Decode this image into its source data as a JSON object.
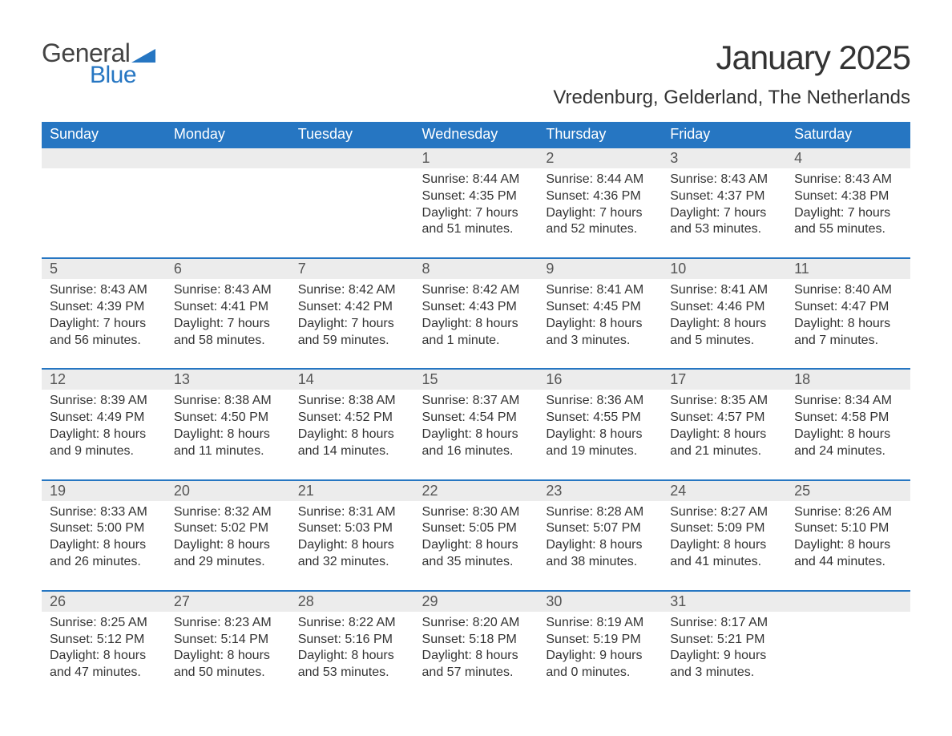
{
  "logo": {
    "text1": "General",
    "text2": "Blue",
    "triangle_color": "#2676c2",
    "text1_color": "#444444",
    "text2_color": "#2676c2"
  },
  "title": "January 2025",
  "location": "Vredenburg, Gelderland, The Netherlands",
  "colors": {
    "header_bg": "#2676c2",
    "header_fg": "#ffffff",
    "daynum_bg": "#ececec",
    "rule": "#2676c2",
    "body_fg": "#333333"
  },
  "day_headers": [
    "Sunday",
    "Monday",
    "Tuesday",
    "Wednesday",
    "Thursday",
    "Friday",
    "Saturday"
  ],
  "weeks": [
    {
      "nums": [
        "",
        "",
        "",
        "1",
        "2",
        "3",
        "4"
      ],
      "details": [
        {
          "l1": "",
          "l2": "",
          "l3": "",
          "l4": ""
        },
        {
          "l1": "",
          "l2": "",
          "l3": "",
          "l4": ""
        },
        {
          "l1": "",
          "l2": "",
          "l3": "",
          "l4": ""
        },
        {
          "l1": "Sunrise: 8:44 AM",
          "l2": "Sunset: 4:35 PM",
          "l3": "Daylight: 7 hours",
          "l4": "and 51 minutes."
        },
        {
          "l1": "Sunrise: 8:44 AM",
          "l2": "Sunset: 4:36 PM",
          "l3": "Daylight: 7 hours",
          "l4": "and 52 minutes."
        },
        {
          "l1": "Sunrise: 8:43 AM",
          "l2": "Sunset: 4:37 PM",
          "l3": "Daylight: 7 hours",
          "l4": "and 53 minutes."
        },
        {
          "l1": "Sunrise: 8:43 AM",
          "l2": "Sunset: 4:38 PM",
          "l3": "Daylight: 7 hours",
          "l4": "and 55 minutes."
        }
      ]
    },
    {
      "nums": [
        "5",
        "6",
        "7",
        "8",
        "9",
        "10",
        "11"
      ],
      "details": [
        {
          "l1": "Sunrise: 8:43 AM",
          "l2": "Sunset: 4:39 PM",
          "l3": "Daylight: 7 hours",
          "l4": "and 56 minutes."
        },
        {
          "l1": "Sunrise: 8:43 AM",
          "l2": "Sunset: 4:41 PM",
          "l3": "Daylight: 7 hours",
          "l4": "and 58 minutes."
        },
        {
          "l1": "Sunrise: 8:42 AM",
          "l2": "Sunset: 4:42 PM",
          "l3": "Daylight: 7 hours",
          "l4": "and 59 minutes."
        },
        {
          "l1": "Sunrise: 8:42 AM",
          "l2": "Sunset: 4:43 PM",
          "l3": "Daylight: 8 hours",
          "l4": "and 1 minute."
        },
        {
          "l1": "Sunrise: 8:41 AM",
          "l2": "Sunset: 4:45 PM",
          "l3": "Daylight: 8 hours",
          "l4": "and 3 minutes."
        },
        {
          "l1": "Sunrise: 8:41 AM",
          "l2": "Sunset: 4:46 PM",
          "l3": "Daylight: 8 hours",
          "l4": "and 5 minutes."
        },
        {
          "l1": "Sunrise: 8:40 AM",
          "l2": "Sunset: 4:47 PM",
          "l3": "Daylight: 8 hours",
          "l4": "and 7 minutes."
        }
      ]
    },
    {
      "nums": [
        "12",
        "13",
        "14",
        "15",
        "16",
        "17",
        "18"
      ],
      "details": [
        {
          "l1": "Sunrise: 8:39 AM",
          "l2": "Sunset: 4:49 PM",
          "l3": "Daylight: 8 hours",
          "l4": "and 9 minutes."
        },
        {
          "l1": "Sunrise: 8:38 AM",
          "l2": "Sunset: 4:50 PM",
          "l3": "Daylight: 8 hours",
          "l4": "and 11 minutes."
        },
        {
          "l1": "Sunrise: 8:38 AM",
          "l2": "Sunset: 4:52 PM",
          "l3": "Daylight: 8 hours",
          "l4": "and 14 minutes."
        },
        {
          "l1": "Sunrise: 8:37 AM",
          "l2": "Sunset: 4:54 PM",
          "l3": "Daylight: 8 hours",
          "l4": "and 16 minutes."
        },
        {
          "l1": "Sunrise: 8:36 AM",
          "l2": "Sunset: 4:55 PM",
          "l3": "Daylight: 8 hours",
          "l4": "and 19 minutes."
        },
        {
          "l1": "Sunrise: 8:35 AM",
          "l2": "Sunset: 4:57 PM",
          "l3": "Daylight: 8 hours",
          "l4": "and 21 minutes."
        },
        {
          "l1": "Sunrise: 8:34 AM",
          "l2": "Sunset: 4:58 PM",
          "l3": "Daylight: 8 hours",
          "l4": "and 24 minutes."
        }
      ]
    },
    {
      "nums": [
        "19",
        "20",
        "21",
        "22",
        "23",
        "24",
        "25"
      ],
      "details": [
        {
          "l1": "Sunrise: 8:33 AM",
          "l2": "Sunset: 5:00 PM",
          "l3": "Daylight: 8 hours",
          "l4": "and 26 minutes."
        },
        {
          "l1": "Sunrise: 8:32 AM",
          "l2": "Sunset: 5:02 PM",
          "l3": "Daylight: 8 hours",
          "l4": "and 29 minutes."
        },
        {
          "l1": "Sunrise: 8:31 AM",
          "l2": "Sunset: 5:03 PM",
          "l3": "Daylight: 8 hours",
          "l4": "and 32 minutes."
        },
        {
          "l1": "Sunrise: 8:30 AM",
          "l2": "Sunset: 5:05 PM",
          "l3": "Daylight: 8 hours",
          "l4": "and 35 minutes."
        },
        {
          "l1": "Sunrise: 8:28 AM",
          "l2": "Sunset: 5:07 PM",
          "l3": "Daylight: 8 hours",
          "l4": "and 38 minutes."
        },
        {
          "l1": "Sunrise: 8:27 AM",
          "l2": "Sunset: 5:09 PM",
          "l3": "Daylight: 8 hours",
          "l4": "and 41 minutes."
        },
        {
          "l1": "Sunrise: 8:26 AM",
          "l2": "Sunset: 5:10 PM",
          "l3": "Daylight: 8 hours",
          "l4": "and 44 minutes."
        }
      ]
    },
    {
      "nums": [
        "26",
        "27",
        "28",
        "29",
        "30",
        "31",
        ""
      ],
      "details": [
        {
          "l1": "Sunrise: 8:25 AM",
          "l2": "Sunset: 5:12 PM",
          "l3": "Daylight: 8 hours",
          "l4": "and 47 minutes."
        },
        {
          "l1": "Sunrise: 8:23 AM",
          "l2": "Sunset: 5:14 PM",
          "l3": "Daylight: 8 hours",
          "l4": "and 50 minutes."
        },
        {
          "l1": "Sunrise: 8:22 AM",
          "l2": "Sunset: 5:16 PM",
          "l3": "Daylight: 8 hours",
          "l4": "and 53 minutes."
        },
        {
          "l1": "Sunrise: 8:20 AM",
          "l2": "Sunset: 5:18 PM",
          "l3": "Daylight: 8 hours",
          "l4": "and 57 minutes."
        },
        {
          "l1": "Sunrise: 8:19 AM",
          "l2": "Sunset: 5:19 PM",
          "l3": "Daylight: 9 hours",
          "l4": "and 0 minutes."
        },
        {
          "l1": "Sunrise: 8:17 AM",
          "l2": "Sunset: 5:21 PM",
          "l3": "Daylight: 9 hours",
          "l4": "and 3 minutes."
        },
        {
          "l1": "",
          "l2": "",
          "l3": "",
          "l4": ""
        }
      ]
    }
  ]
}
